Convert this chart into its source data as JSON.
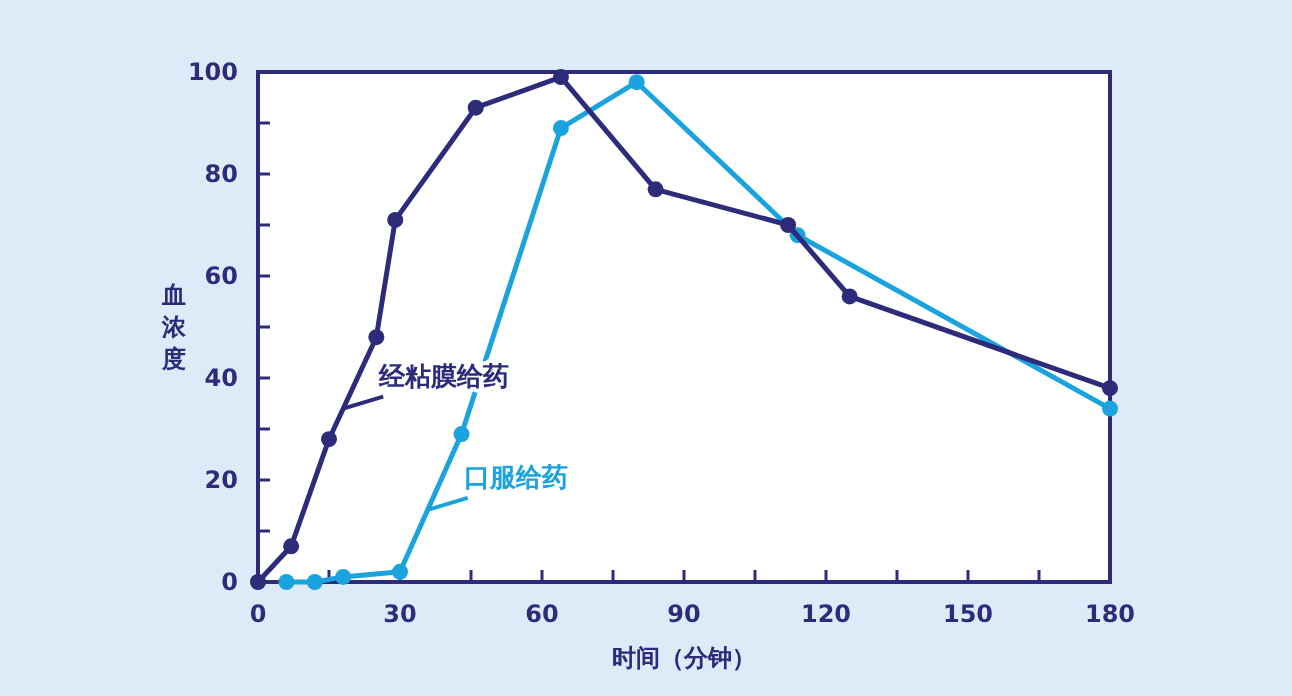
{
  "chart_data": {
    "type": "line",
    "xlabel": "时间（分钟）",
    "ylabel": "血浓度",
    "xlim": [
      0,
      180
    ],
    "xticks": [
      0,
      {
        "value": 15,
        "label": null
      },
      30,
      {
        "value": 45,
        "label": null
      },
      60,
      {
        "value": 75,
        "label": null
      },
      90,
      {
        "value": 105,
        "label": null
      },
      120,
      {
        "value": 135,
        "label": null
      },
      150,
      {
        "value": 165,
        "label": null
      },
      180
    ],
    "ylim": [
      0,
      100
    ],
    "yticks": [
      0,
      {
        "value": 10,
        "label": null
      },
      20,
      {
        "value": 30,
        "label": null
      },
      40,
      {
        "value": 50,
        "label": null
      },
      60,
      {
        "value": 70,
        "label": null
      },
      80,
      {
        "value": 90,
        "label": null
      },
      100
    ],
    "grid": false,
    "marker": "circle",
    "line_style": "solid",
    "series": [
      {
        "name": "经粘膜给药",
        "color": "#2e2b7b",
        "x": [
          0,
          7,
          15,
          25,
          29,
          46,
          64,
          84,
          112,
          125,
          180
        ],
        "values": [
          0,
          7,
          28,
          48,
          71,
          93,
          99,
          77,
          70,
          56,
          38
        ]
      },
      {
        "name": "口服给药",
        "color": "#1aa3dc",
        "x": [
          6,
          12,
          18,
          30,
          43,
          64,
          80,
          114,
          180
        ],
        "values": [
          0,
          0,
          1,
          2,
          29,
          89,
          98,
          68,
          34
        ]
      }
    ]
  }
}
